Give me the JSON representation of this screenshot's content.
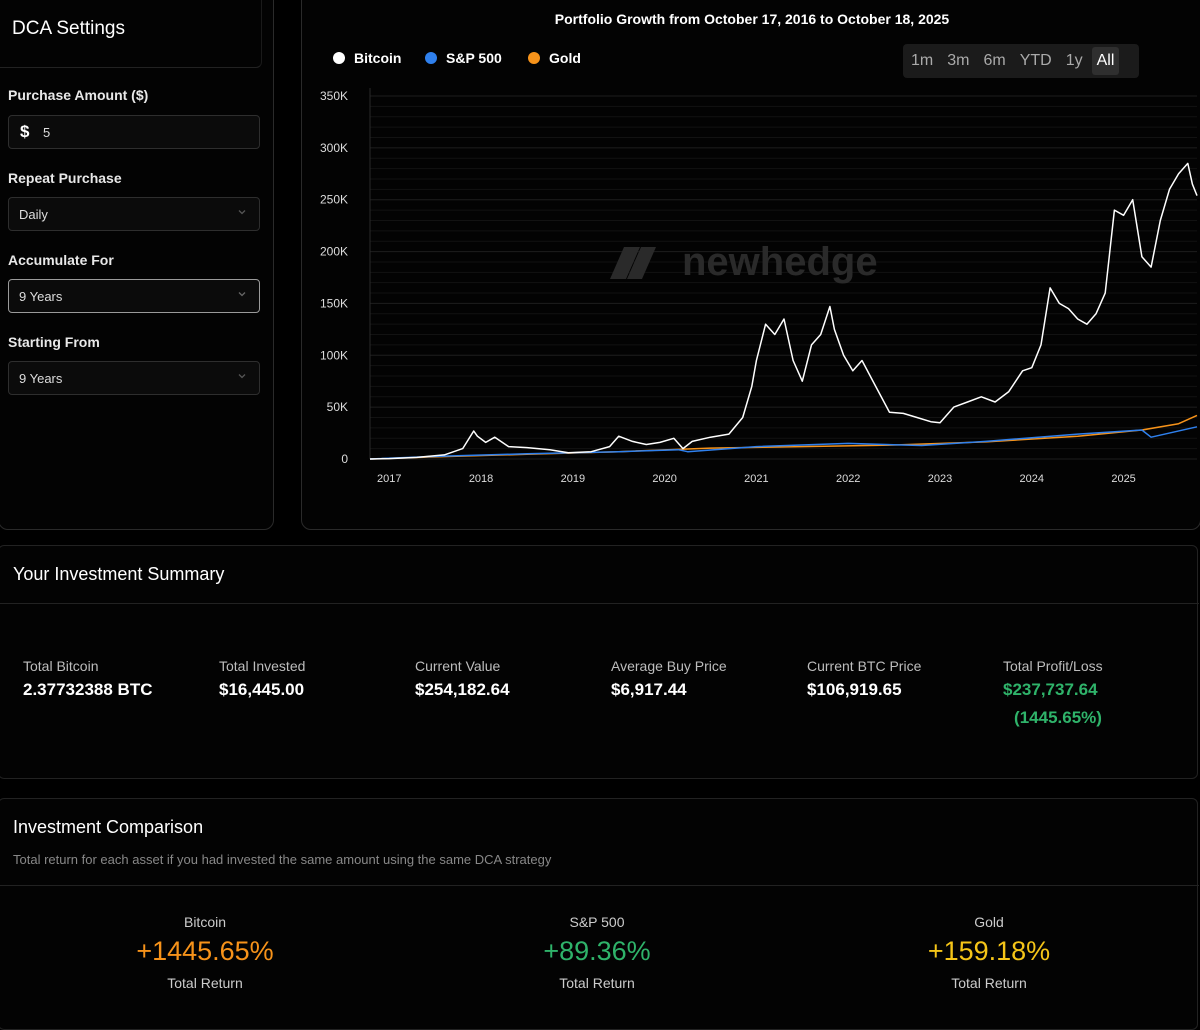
{
  "settings": {
    "title": "DCA Settings",
    "purchase_amount_label": "Purchase Amount ($)",
    "currency_symbol": "$",
    "purchase_amount_value": "5",
    "repeat_label": "Repeat Purchase",
    "repeat_value": "Daily",
    "accumulate_label": "Accumulate For",
    "accumulate_value": "9 Years",
    "starting_label": "Starting From",
    "starting_value": "9 Years"
  },
  "chart": {
    "watermark": "newhedge",
    "range_buttons": [
      "1m",
      "3m",
      "6m",
      "YTD",
      "1y",
      "All"
    ],
    "active_range": "All"
  },
  "chart_data": {
    "type": "line",
    "title": "Portfolio Growth from October 17, 2016 to October 18, 2025",
    "xlabel": "",
    "ylabel": "",
    "x_range": [
      2016.79,
      2025.8
    ],
    "ylim": [
      0,
      350000
    ],
    "y_ticks": [
      0,
      50000,
      100000,
      150000,
      200000,
      250000,
      300000,
      350000
    ],
    "y_tick_labels": [
      "0",
      "50K",
      "100K",
      "150K",
      "200K",
      "250K",
      "300K",
      "350K"
    ],
    "x_ticks": [
      2017,
      2018,
      2019,
      2020,
      2021,
      2022,
      2023,
      2024,
      2025
    ],
    "x_tick_labels": [
      "2017",
      "2018",
      "2019",
      "2020",
      "2021",
      "2022",
      "2023",
      "2024",
      "2025"
    ],
    "grid": true,
    "legend_position": "top-left",
    "series": [
      {
        "name": "Bitcoin",
        "color": "#ffffff",
        "x": [
          2016.79,
          2017.0,
          2017.3,
          2017.6,
          2017.8,
          2017.92,
          2017.96,
          2018.05,
          2018.15,
          2018.3,
          2018.5,
          2018.75,
          2018.95,
          2019.2,
          2019.4,
          2019.5,
          2019.65,
          2019.8,
          2019.95,
          2020.1,
          2020.2,
          2020.3,
          2020.5,
          2020.7,
          2020.85,
          2020.95,
          2021.0,
          2021.1,
          2021.2,
          2021.3,
          2021.4,
          2021.5,
          2021.6,
          2021.7,
          2021.8,
          2021.85,
          2021.95,
          2022.05,
          2022.15,
          2022.3,
          2022.45,
          2022.6,
          2022.75,
          2022.9,
          2023.0,
          2023.15,
          2023.3,
          2023.45,
          2023.6,
          2023.75,
          2023.9,
          2024.0,
          2024.1,
          2024.2,
          2024.3,
          2024.4,
          2024.5,
          2024.6,
          2024.7,
          2024.8,
          2024.9,
          2025.0,
          2025.1,
          2025.2,
          2025.3,
          2025.4,
          2025.5,
          2025.6,
          2025.7,
          2025.75,
          2025.8
        ],
        "values": [
          0,
          400,
          1500,
          4000,
          10000,
          27000,
          22000,
          16000,
          21000,
          12000,
          11000,
          9000,
          6000,
          7000,
          12000,
          22000,
          17000,
          14000,
          16000,
          20000,
          10000,
          17000,
          21000,
          24000,
          40000,
          70000,
          95000,
          130000,
          120000,
          135000,
          95000,
          75000,
          110000,
          120000,
          147000,
          125000,
          100000,
          85000,
          95000,
          70000,
          45000,
          44000,
          40000,
          36000,
          35000,
          50000,
          55000,
          60000,
          55000,
          65000,
          85000,
          88000,
          110000,
          165000,
          150000,
          145000,
          135000,
          130000,
          140000,
          160000,
          240000,
          235000,
          250000,
          195000,
          185000,
          230000,
          260000,
          275000,
          285000,
          265000,
          254000
        ]
      },
      {
        "name": "S&P 500",
        "color": "#2f80ed",
        "x": [
          2016.79,
          2017.5,
          2018.5,
          2019.5,
          2020.15,
          2020.25,
          2021.0,
          2022.0,
          2022.8,
          2023.5,
          2024.5,
          2025.2,
          2025.3,
          2025.8
        ],
        "values": [
          0,
          2500,
          5000,
          7000,
          9000,
          7000,
          12000,
          15000,
          13000,
          17000,
          24000,
          28000,
          21000,
          31000
        ]
      },
      {
        "name": "Gold",
        "color": "#f7931a",
        "x": [
          2016.79,
          2017.5,
          2018.5,
          2019.5,
          2020.5,
          2021.5,
          2022.5,
          2023.5,
          2024.5,
          2025.2,
          2025.6,
          2025.8
        ],
        "values": [
          0,
          2000,
          4500,
          7000,
          10500,
          12000,
          13500,
          16500,
          22000,
          28000,
          34000,
          42000
        ]
      }
    ]
  },
  "summary": {
    "title": "Your Investment Summary",
    "stats": [
      {
        "label": "Total Bitcoin",
        "value": "2.37732388 BTC"
      },
      {
        "label": "Total Invested",
        "value": "$16,445.00"
      },
      {
        "label": "Current Value",
        "value": "$254,182.64"
      },
      {
        "label": "Average Buy Price",
        "value": "$6,917.44"
      },
      {
        "label": "Current BTC Price",
        "value": "$106,919.65"
      },
      {
        "label": "Total Profit/Loss",
        "value": "$237,737.64",
        "value2": "(1445.65%)"
      }
    ],
    "profit_color": "#2fb36a"
  },
  "comparison": {
    "title": "Investment Comparison",
    "subtitle": "Total return for each asset if you had invested the same amount using the same DCA strategy",
    "items": [
      {
        "name": "Bitcoin",
        "value": "+1445.65%",
        "caption": "Total Return",
        "color": "#f7931a"
      },
      {
        "name": "S&P 500",
        "value": "+89.36%",
        "caption": "Total Return",
        "color": "#2fb36a"
      },
      {
        "name": "Gold",
        "value": "+159.18%",
        "caption": "Total Return",
        "color": "#f5c518"
      }
    ]
  }
}
